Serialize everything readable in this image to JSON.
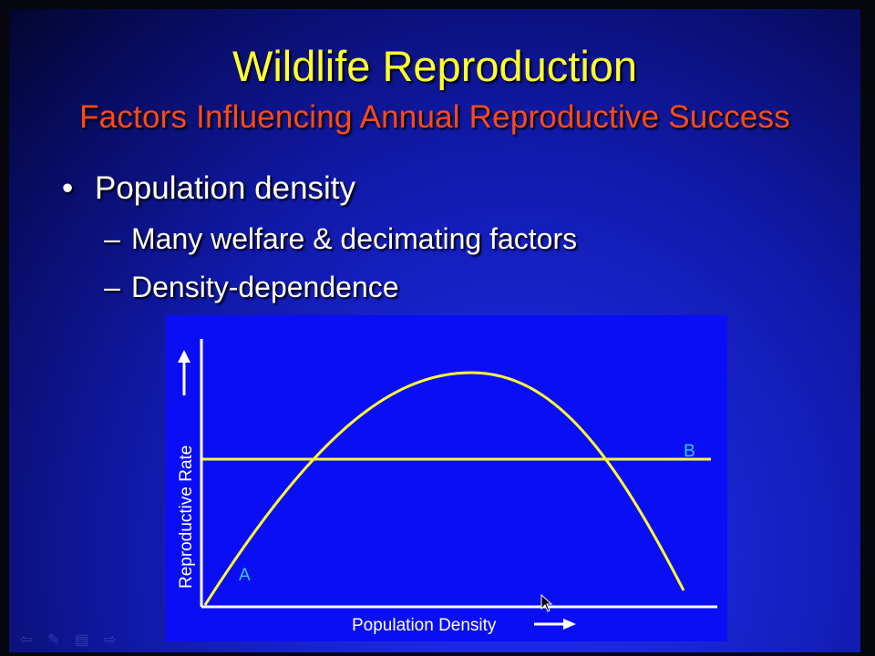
{
  "slide": {
    "title": "Wildlife Reproduction",
    "subtitle": "Factors Influencing Annual Reproductive Success",
    "bullet": {
      "marker": "•",
      "text": "Population density",
      "subitems": [
        {
          "marker": "–",
          "text": "Many welfare & decimating factors"
        },
        {
          "marker": "–",
          "text": "Density-dependence"
        }
      ]
    }
  },
  "diagram": {
    "ylabel": "Reproductive Rate",
    "xlabel": "Population Density",
    "curve_label": "A",
    "line_label": "B",
    "curve_color": "#ffff33",
    "line_color": "#ffff33",
    "label_color": "#33ccff",
    "background_color": "#0a0ef5"
  },
  "nav_icons": [
    "back-arrow-icon",
    "pen-icon",
    "menu-icon",
    "forward-arrow-icon"
  ]
}
